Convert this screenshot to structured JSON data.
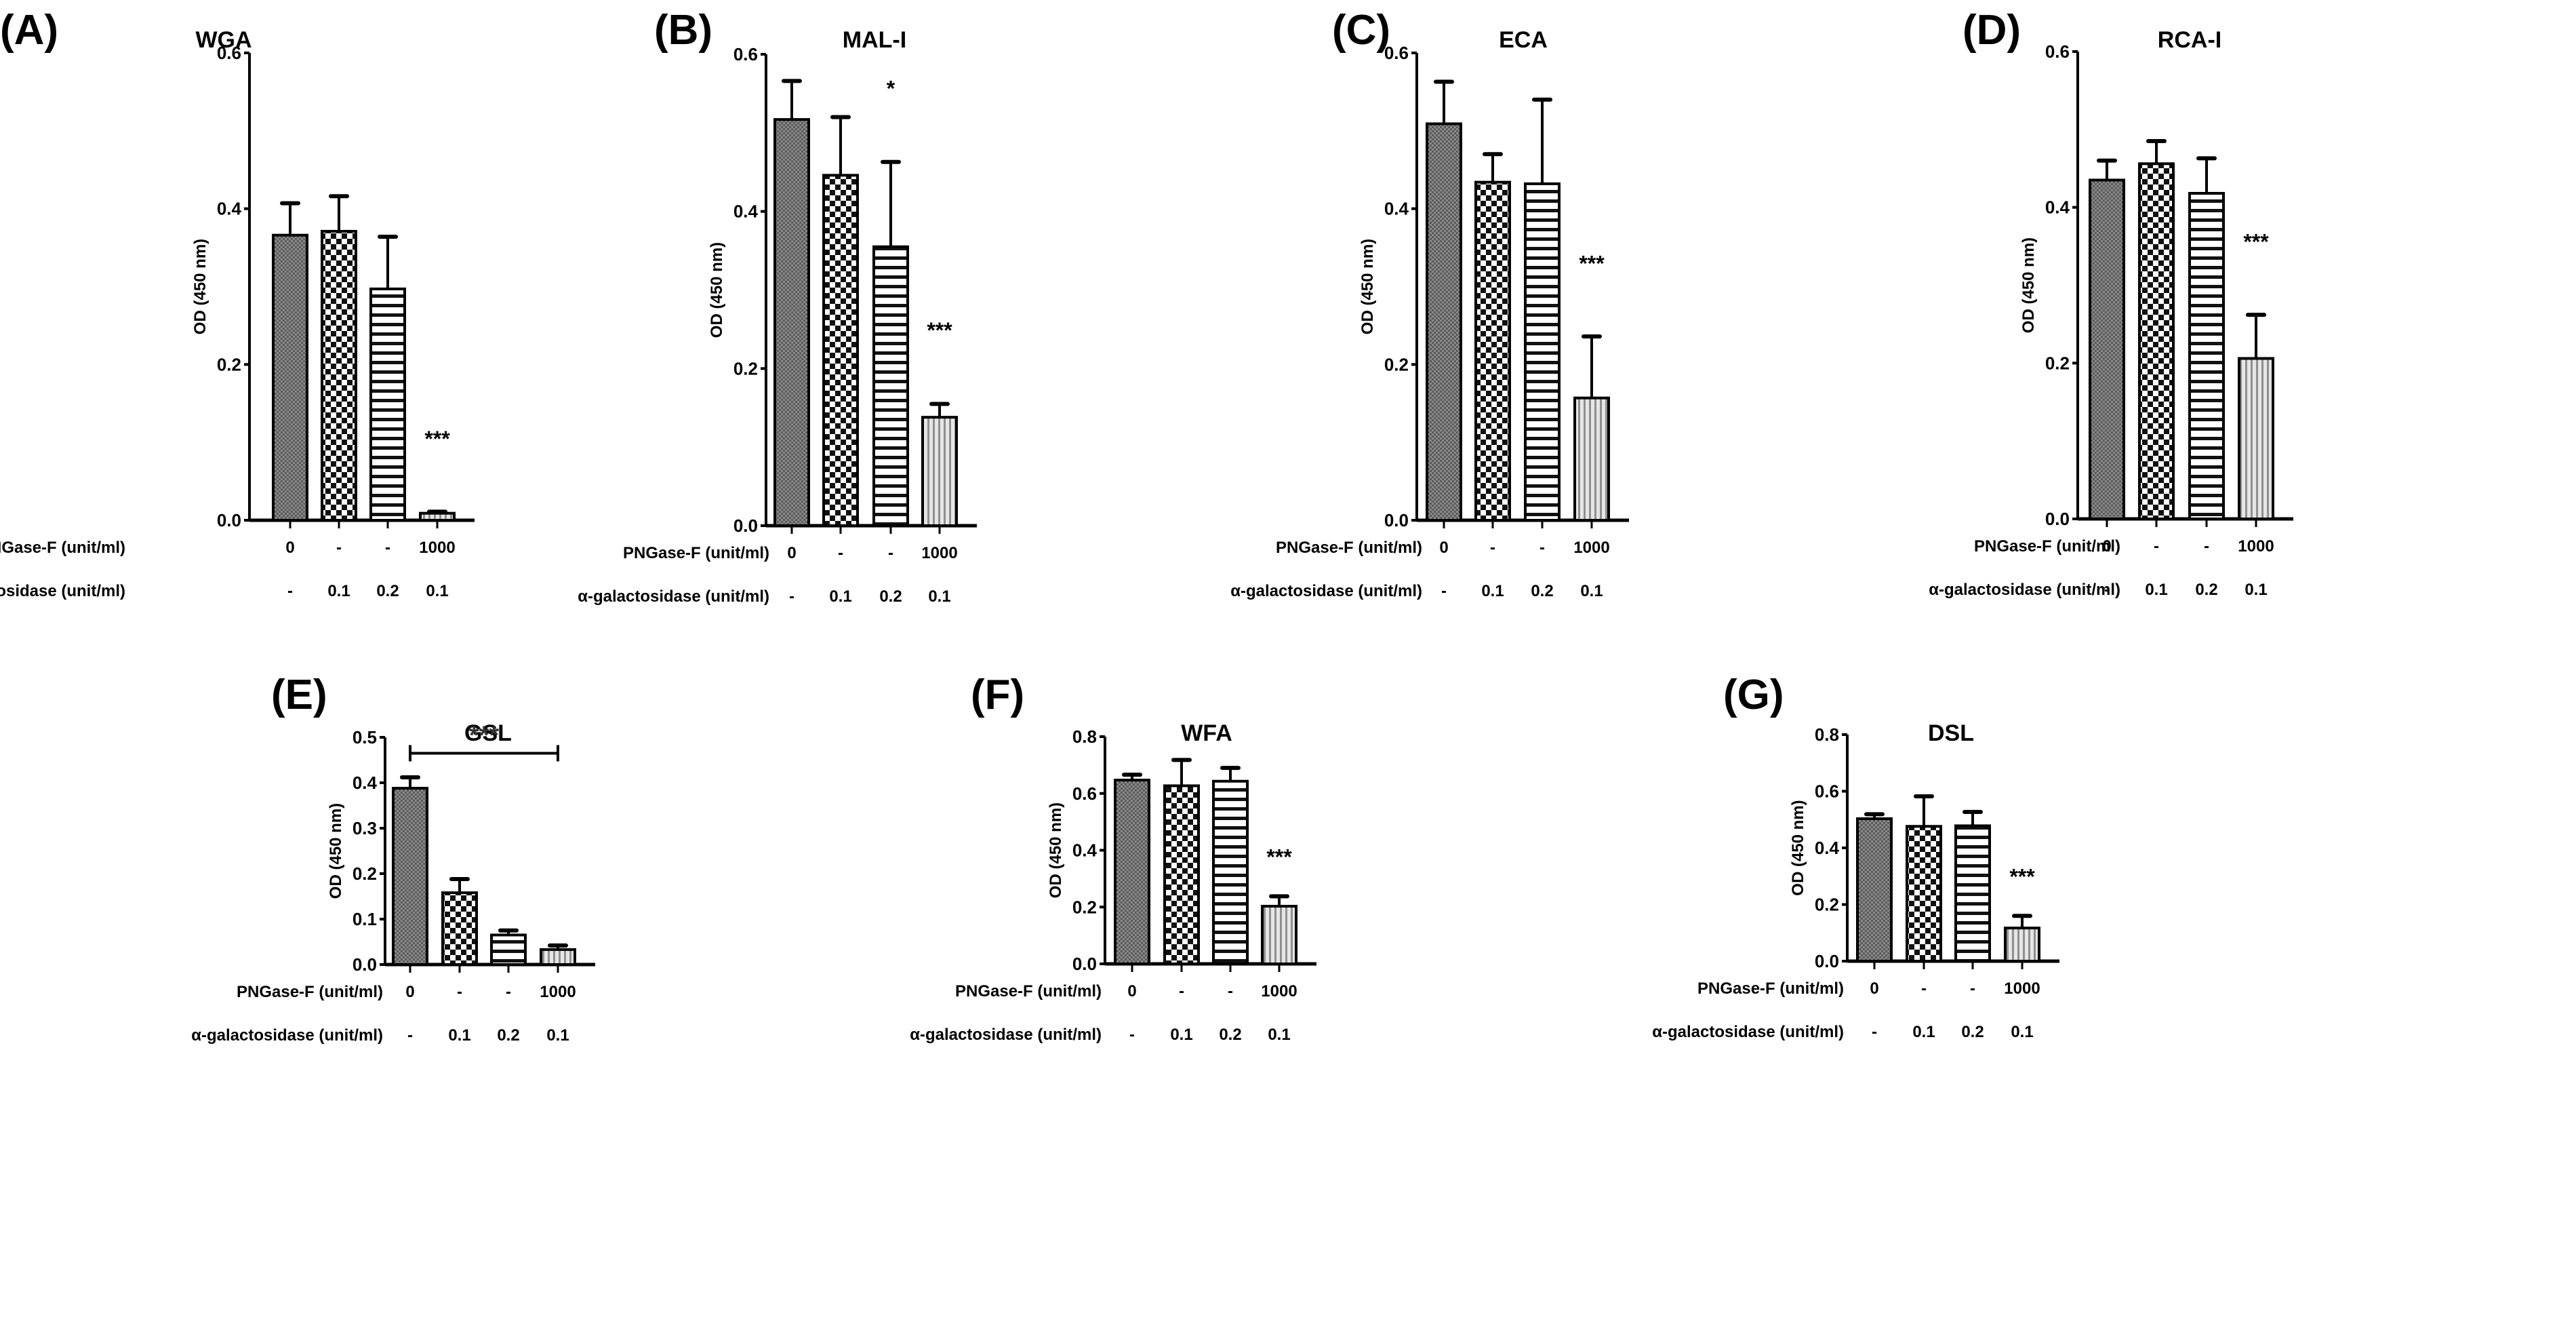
{
  "figure": {
    "row_labels": {
      "pngase": "PNGase-F (unit/ml)",
      "galactosidase": "α-galactosidase (unit/ml)"
    },
    "pngase_values": [
      "0",
      "-",
      "-",
      "1000"
    ],
    "galactosidase_values": [
      "-",
      "0.1",
      "0.2",
      "0.1"
    ],
    "ylabel": "OD (450 nm)"
  },
  "chart_data": [
    {
      "panel": "(A)",
      "type": "bar",
      "title": "WGA",
      "ylabel": "OD (450 nm)",
      "ylim": [
        0,
        0.6
      ],
      "yticks": [
        0.0,
        0.2,
        0.4,
        0.6
      ],
      "categories": [
        "PNGase-F 0 / α-gal -",
        "PNGase-F - / α-gal 0.1",
        "PNGase-F - / α-gal 0.2",
        "PNGase-F 1000 / α-gal 0.1"
      ],
      "values": [
        0.366,
        0.371,
        0.297,
        0.009
      ],
      "error_upper": [
        0.407,
        0.416,
        0.364,
        0.011
      ],
      "annotations": [
        {
          "bar": 3,
          "text": "***"
        }
      ]
    },
    {
      "panel": "(B)",
      "type": "bar",
      "title": "MAL-I",
      "ylabel": "OD (450 nm)",
      "ylim": [
        0,
        0.6
      ],
      "yticks": [
        0.0,
        0.2,
        0.4,
        0.6
      ],
      "categories": [
        "PNGase-F 0 / α-gal -",
        "PNGase-F - / α-gal 0.1",
        "PNGase-F - / α-gal 0.2",
        "PNGase-F 1000 / α-gal 0.1"
      ],
      "values": [
        0.517,
        0.446,
        0.355,
        0.138
      ],
      "error_upper": [
        0.566,
        0.52,
        0.463,
        0.155
      ],
      "annotations": [
        {
          "bar": 2,
          "text": "*"
        },
        {
          "bar": 3,
          "text": "***"
        }
      ]
    },
    {
      "panel": "(C)",
      "type": "bar",
      "title": "ECA",
      "ylabel": "OD (450 nm)",
      "ylim": [
        0,
        0.6
      ],
      "yticks": [
        0.0,
        0.2,
        0.4,
        0.6
      ],
      "categories": [
        "PNGase-F 0 / α-gal -",
        "PNGase-F - / α-gal 0.1",
        "PNGase-F - / α-gal 0.2",
        "PNGase-F 1000 / α-gal 0.1"
      ],
      "values": [
        0.509,
        0.434,
        0.432,
        0.157
      ],
      "error_upper": [
        0.563,
        0.47,
        0.54,
        0.236
      ],
      "annotations": [
        {
          "bar": 3,
          "text": "***"
        }
      ]
    },
    {
      "panel": "(D)",
      "type": "bar",
      "title": "RCA-I",
      "ylabel": "OD (450 nm)",
      "ylim": [
        0,
        0.6
      ],
      "yticks": [
        0.0,
        0.2,
        0.4,
        0.6
      ],
      "categories": [
        "PNGase-F 0 / α-gal -",
        "PNGase-F - / α-gal 0.1",
        "PNGase-F - / α-gal 0.2",
        "PNGase-F 1000 / α-gal 0.1"
      ],
      "values": [
        0.435,
        0.456,
        0.418,
        0.206
      ],
      "error_upper": [
        0.46,
        0.485,
        0.463,
        0.262
      ],
      "annotations": [
        {
          "bar": 3,
          "text": "***"
        }
      ]
    },
    {
      "panel": "(E)",
      "type": "bar",
      "title": "GSL",
      "ylabel": "OD (450 nm)",
      "ylim": [
        0,
        0.5
      ],
      "yticks": [
        0.0,
        0.1,
        0.2,
        0.3,
        0.4,
        0.5
      ],
      "categories": [
        "PNGase-F 0 / α-gal -",
        "PNGase-F - / α-gal 0.1",
        "PNGase-F - / α-gal 0.2",
        "PNGase-F 1000 / α-gal 0.1"
      ],
      "values": [
        0.388,
        0.158,
        0.065,
        0.033
      ],
      "error_upper": [
        0.412,
        0.188,
        0.075,
        0.042
      ],
      "annotations": [
        {
          "bracket": [
            0,
            3
          ],
          "text": "***",
          "y": 0.465
        }
      ]
    },
    {
      "panel": "(F)",
      "type": "bar",
      "title": "WFA",
      "ylabel": "OD (450 nm)",
      "ylim": [
        0,
        0.8
      ],
      "yticks": [
        0.0,
        0.2,
        0.4,
        0.6,
        0.8
      ],
      "categories": [
        "PNGase-F 0 / α-gal -",
        "PNGase-F - / α-gal 0.1",
        "PNGase-F - / α-gal 0.2",
        "PNGase-F 1000 / α-gal 0.1"
      ],
      "values": [
        0.647,
        0.627,
        0.643,
        0.203
      ],
      "error_upper": [
        0.666,
        0.718,
        0.69,
        0.238
      ],
      "annotations": [
        {
          "bar": 3,
          "text": "***"
        }
      ]
    },
    {
      "panel": "(G)",
      "type": "bar",
      "title": "DSL",
      "ylabel": "OD (450 nm)",
      "ylim": [
        0,
        0.8
      ],
      "yticks": [
        0.0,
        0.2,
        0.4,
        0.6,
        0.8
      ],
      "categories": [
        "PNGase-F 0 / α-gal -",
        "PNGase-F - / α-gal 0.1",
        "PNGase-F - / α-gal 0.2",
        "PNGase-F 1000 / α-gal 0.1"
      ],
      "values": [
        0.503,
        0.476,
        0.478,
        0.117
      ],
      "error_upper": [
        0.519,
        0.582,
        0.527,
        0.16
      ],
      "annotations": [
        {
          "bar": 3,
          "text": "***"
        }
      ]
    }
  ]
}
